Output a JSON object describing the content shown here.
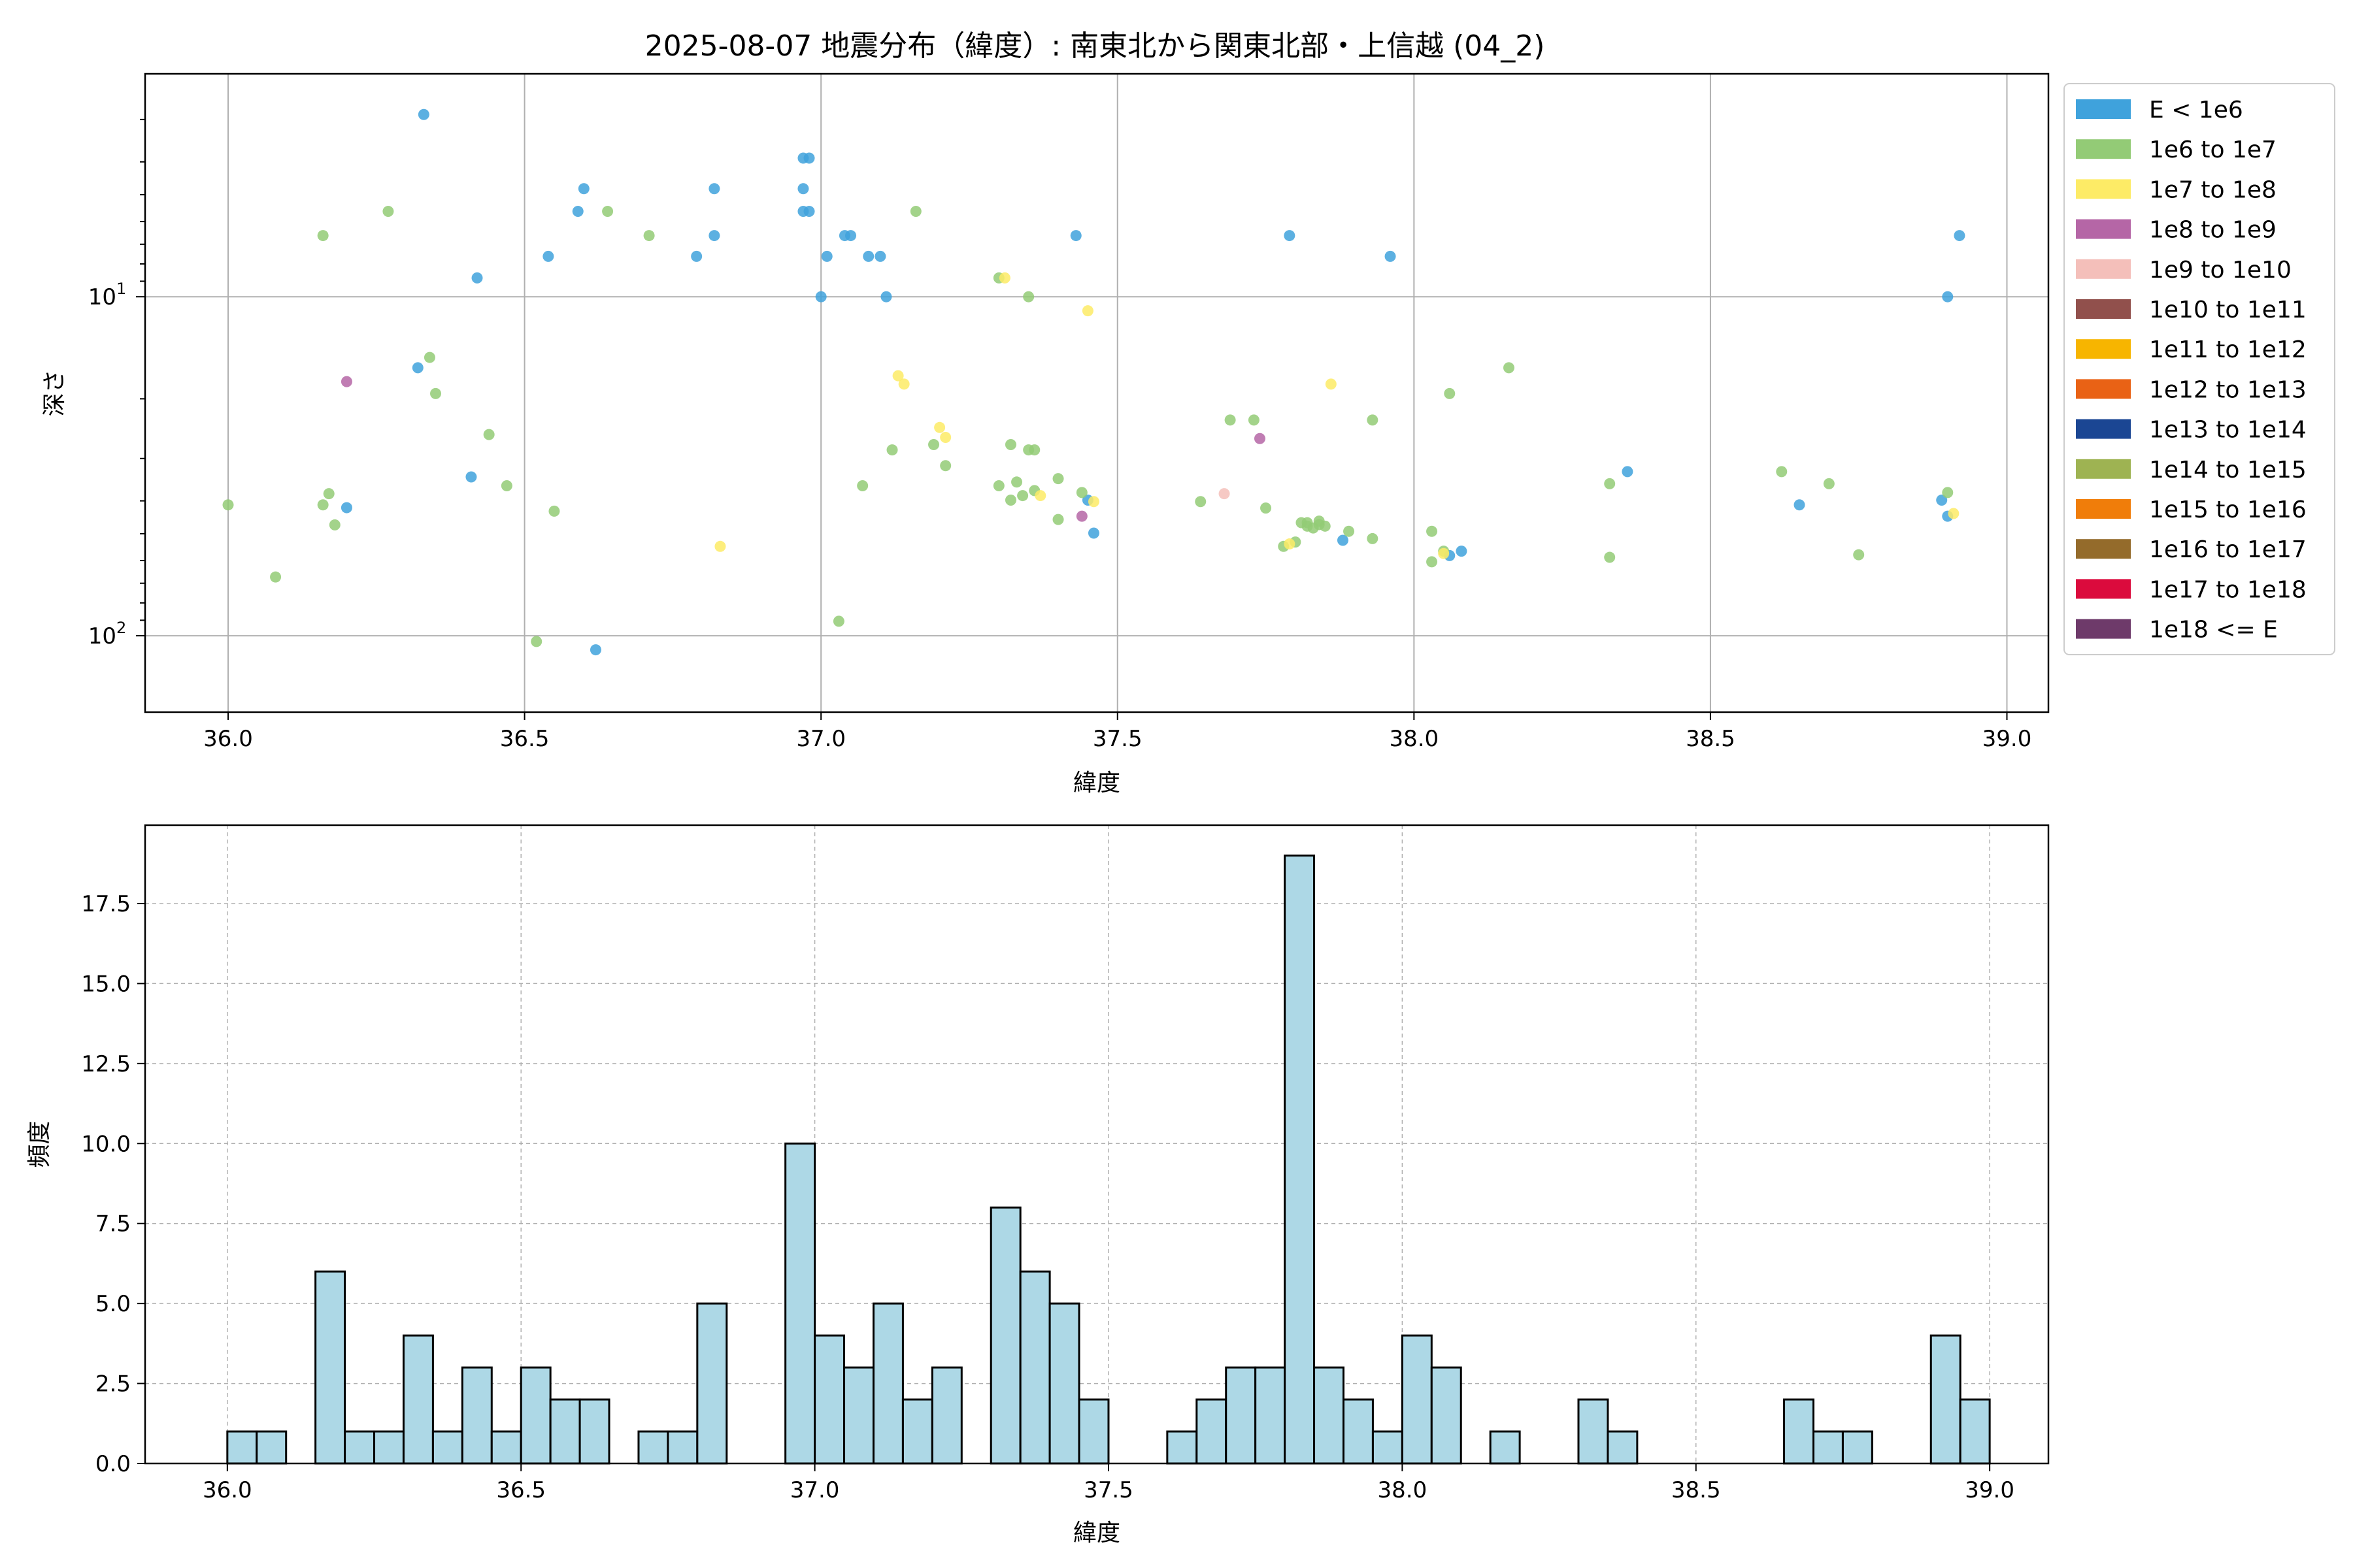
{
  "figure": {
    "title": "2025-08-07 地震分布（緯度）: 南東北から関東北部・上信越 (04_2)"
  },
  "chart_data": [
    {
      "type": "scatter",
      "xlabel": "緯度",
      "ylabel": "深さ",
      "xlim": [
        35.86,
        39.07
      ],
      "ylim": [
        168,
        2.2
      ],
      "y_scale": "log",
      "y_inverted": true,
      "grid": true,
      "x_ticks": [
        {
          "value": 36.0,
          "label": "36.0"
        },
        {
          "value": 36.5,
          "label": "36.5"
        },
        {
          "value": 37.0,
          "label": "37.0"
        },
        {
          "value": 37.5,
          "label": "37.5"
        },
        {
          "value": 38.0,
          "label": "38.0"
        },
        {
          "value": 38.5,
          "label": "38.5"
        },
        {
          "value": 39.0,
          "label": "39.0"
        }
      ],
      "y_ticks": [
        {
          "value": 10,
          "base": "10",
          "exp": "1"
        },
        {
          "value": 100,
          "base": "10",
          "exp": "2"
        }
      ],
      "legend_position": "outside-right",
      "legend": [
        {
          "label": "E < 1e6",
          "color": "#3fa2dc"
        },
        {
          "label": "1e6 to 1e7",
          "color": "#93cb76"
        },
        {
          "label": "1e7 to 1e8",
          "color": "#fdeb66"
        },
        {
          "label": "1e8 to 1e9",
          "color": "#b566a6"
        },
        {
          "label": "1e9 to 1e10",
          "color": "#f4bfba"
        },
        {
          "label": "1e10 to 1e11",
          "color": "#91504c"
        },
        {
          "label": "1e11 to 1e12",
          "color": "#f7b500"
        },
        {
          "label": "1e12 to 1e13",
          "color": "#e96215"
        },
        {
          "label": "1e13 to 1e14",
          "color": "#1b4693"
        },
        {
          "label": "1e14 to 1e15",
          "color": "#9eb352"
        },
        {
          "label": "1e15 to 1e16",
          "color": "#f07d0a"
        },
        {
          "label": "1e16 to 1e17",
          "color": "#946b2b"
        },
        {
          "label": "1e17 to 1e18",
          "color": "#db0b3d"
        },
        {
          "label": "1e18 <= E",
          "color": "#6e3a6a"
        }
      ],
      "points": [
        {
          "lat": 36.33,
          "depth": 2.9,
          "c": 0
        },
        {
          "lat": 36.42,
          "depth": 8.8,
          "c": 0
        },
        {
          "lat": 36.32,
          "depth": 16.2,
          "c": 0
        },
        {
          "lat": 36.41,
          "depth": 34.0,
          "c": 0
        },
        {
          "lat": 36.2,
          "depth": 41.9,
          "c": 0
        },
        {
          "lat": 36.62,
          "depth": 110.0,
          "c": 0
        },
        {
          "lat": 36.54,
          "depth": 7.6,
          "c": 0
        },
        {
          "lat": 36.59,
          "depth": 5.6,
          "c": 0
        },
        {
          "lat": 36.6,
          "depth": 4.8,
          "c": 0
        },
        {
          "lat": 36.79,
          "depth": 7.6,
          "c": 0
        },
        {
          "lat": 36.82,
          "depth": 6.6,
          "c": 0
        },
        {
          "lat": 36.82,
          "depth": 4.8,
          "c": 0
        },
        {
          "lat": 36.97,
          "depth": 3.9,
          "c": 0
        },
        {
          "lat": 36.98,
          "depth": 3.9,
          "c": 0
        },
        {
          "lat": 36.97,
          "depth": 4.8,
          "c": 0
        },
        {
          "lat": 36.97,
          "depth": 5.6,
          "c": 0
        },
        {
          "lat": 36.98,
          "depth": 5.6,
          "c": 0
        },
        {
          "lat": 37.0,
          "depth": 10.0,
          "c": 0
        },
        {
          "lat": 37.01,
          "depth": 7.6,
          "c": 0
        },
        {
          "lat": 37.04,
          "depth": 6.6,
          "c": 0
        },
        {
          "lat": 37.05,
          "depth": 6.6,
          "c": 0
        },
        {
          "lat": 37.08,
          "depth": 7.6,
          "c": 0
        },
        {
          "lat": 37.1,
          "depth": 7.6,
          "c": 0
        },
        {
          "lat": 37.11,
          "depth": 10.0,
          "c": 0
        },
        {
          "lat": 37.43,
          "depth": 6.6,
          "c": 0
        },
        {
          "lat": 37.45,
          "depth": 39.8,
          "c": 0
        },
        {
          "lat": 37.46,
          "depth": 49.8,
          "c": 0
        },
        {
          "lat": 37.79,
          "depth": 6.6,
          "c": 0
        },
        {
          "lat": 37.88,
          "depth": 52.3,
          "c": 0
        },
        {
          "lat": 37.96,
          "depth": 7.6,
          "c": 0
        },
        {
          "lat": 38.06,
          "depth": 58.0,
          "c": 0
        },
        {
          "lat": 38.08,
          "depth": 56.3,
          "c": 0
        },
        {
          "lat": 38.36,
          "depth": 32.8,
          "c": 0
        },
        {
          "lat": 38.65,
          "depth": 41.1,
          "c": 0
        },
        {
          "lat": 38.89,
          "depth": 39.8,
          "c": 0
        },
        {
          "lat": 38.9,
          "depth": 44.4,
          "c": 0
        },
        {
          "lat": 38.9,
          "depth": 10.0,
          "c": 0
        },
        {
          "lat": 38.92,
          "depth": 6.6,
          "c": 0
        },
        {
          "lat": 36.0,
          "depth": 41.1,
          "c": 1
        },
        {
          "lat": 36.08,
          "depth": 67.1,
          "c": 1
        },
        {
          "lat": 36.16,
          "depth": 6.6,
          "c": 1
        },
        {
          "lat": 36.16,
          "depth": 41.1,
          "c": 1
        },
        {
          "lat": 36.17,
          "depth": 38.1,
          "c": 1
        },
        {
          "lat": 36.18,
          "depth": 47.1,
          "c": 1
        },
        {
          "lat": 36.27,
          "depth": 5.6,
          "c": 1
        },
        {
          "lat": 36.34,
          "depth": 15.1,
          "c": 1
        },
        {
          "lat": 36.35,
          "depth": 19.3,
          "c": 1
        },
        {
          "lat": 36.44,
          "depth": 25.5,
          "c": 1
        },
        {
          "lat": 36.47,
          "depth": 36.1,
          "c": 1
        },
        {
          "lat": 36.52,
          "depth": 104.0,
          "c": 1
        },
        {
          "lat": 36.55,
          "depth": 42.9,
          "c": 1
        },
        {
          "lat": 36.64,
          "depth": 5.6,
          "c": 1
        },
        {
          "lat": 36.71,
          "depth": 6.6,
          "c": 1
        },
        {
          "lat": 37.03,
          "depth": 90.6,
          "c": 1
        },
        {
          "lat": 37.07,
          "depth": 36.1,
          "c": 1
        },
        {
          "lat": 37.12,
          "depth": 28.3,
          "c": 1
        },
        {
          "lat": 37.16,
          "depth": 5.6,
          "c": 1
        },
        {
          "lat": 37.19,
          "depth": 27.3,
          "c": 1
        },
        {
          "lat": 37.21,
          "depth": 31.5,
          "c": 1
        },
        {
          "lat": 37.3,
          "depth": 8.8,
          "c": 1
        },
        {
          "lat": 37.3,
          "depth": 36.1,
          "c": 1
        },
        {
          "lat": 37.32,
          "depth": 27.3,
          "c": 1
        },
        {
          "lat": 37.32,
          "depth": 39.8,
          "c": 1
        },
        {
          "lat": 37.33,
          "depth": 35.2,
          "c": 1
        },
        {
          "lat": 37.34,
          "depth": 38.6,
          "c": 1
        },
        {
          "lat": 37.35,
          "depth": 10.0,
          "c": 1
        },
        {
          "lat": 37.35,
          "depth": 28.3,
          "c": 1
        },
        {
          "lat": 37.36,
          "depth": 28.3,
          "c": 1
        },
        {
          "lat": 37.36,
          "depth": 37.3,
          "c": 1
        },
        {
          "lat": 37.4,
          "depth": 34.4,
          "c": 1
        },
        {
          "lat": 37.4,
          "depth": 45.4,
          "c": 1
        },
        {
          "lat": 37.44,
          "depth": 37.8,
          "c": 1
        },
        {
          "lat": 37.64,
          "depth": 40.2,
          "c": 1
        },
        {
          "lat": 37.69,
          "depth": 23.1,
          "c": 1
        },
        {
          "lat": 37.73,
          "depth": 23.1,
          "c": 1
        },
        {
          "lat": 37.75,
          "depth": 42.0,
          "c": 1
        },
        {
          "lat": 37.78,
          "depth": 54.5,
          "c": 1
        },
        {
          "lat": 37.8,
          "depth": 52.9,
          "c": 1
        },
        {
          "lat": 37.81,
          "depth": 46.4,
          "c": 1
        },
        {
          "lat": 37.82,
          "depth": 46.4,
          "c": 1
        },
        {
          "lat": 37.82,
          "depth": 47.5,
          "c": 1
        },
        {
          "lat": 37.83,
          "depth": 48.1,
          "c": 1
        },
        {
          "lat": 37.84,
          "depth": 45.9,
          "c": 1
        },
        {
          "lat": 37.84,
          "depth": 47.0,
          "c": 1
        },
        {
          "lat": 37.85,
          "depth": 47.5,
          "c": 1
        },
        {
          "lat": 37.89,
          "depth": 49.2,
          "c": 1
        },
        {
          "lat": 37.93,
          "depth": 23.1,
          "c": 1
        },
        {
          "lat": 37.93,
          "depth": 51.7,
          "c": 1
        },
        {
          "lat": 38.03,
          "depth": 49.2,
          "c": 1
        },
        {
          "lat": 38.03,
          "depth": 60.5,
          "c": 1
        },
        {
          "lat": 38.05,
          "depth": 56.3,
          "c": 1
        },
        {
          "lat": 38.06,
          "depth": 19.3,
          "c": 1
        },
        {
          "lat": 38.16,
          "depth": 16.2,
          "c": 1
        },
        {
          "lat": 38.33,
          "depth": 35.6,
          "c": 1
        },
        {
          "lat": 38.33,
          "depth": 58.7,
          "c": 1
        },
        {
          "lat": 38.62,
          "depth": 32.8,
          "c": 1
        },
        {
          "lat": 38.7,
          "depth": 35.6,
          "c": 1
        },
        {
          "lat": 38.75,
          "depth": 57.7,
          "c": 1
        },
        {
          "lat": 38.9,
          "depth": 37.8,
          "c": 1
        },
        {
          "lat": 36.83,
          "depth": 54.5,
          "c": 2
        },
        {
          "lat": 37.13,
          "depth": 17.1,
          "c": 2
        },
        {
          "lat": 37.14,
          "depth": 18.1,
          "c": 2
        },
        {
          "lat": 37.2,
          "depth": 24.3,
          "c": 2
        },
        {
          "lat": 37.21,
          "depth": 26.0,
          "c": 2
        },
        {
          "lat": 37.31,
          "depth": 8.8,
          "c": 2
        },
        {
          "lat": 37.37,
          "depth": 38.6,
          "c": 2
        },
        {
          "lat": 37.45,
          "depth": 11.0,
          "c": 2
        },
        {
          "lat": 37.46,
          "depth": 40.2,
          "c": 2
        },
        {
          "lat": 37.79,
          "depth": 53.6,
          "c": 2
        },
        {
          "lat": 37.86,
          "depth": 18.1,
          "c": 2
        },
        {
          "lat": 38.05,
          "depth": 57.2,
          "c": 2
        },
        {
          "lat": 38.91,
          "depth": 43.6,
          "c": 2
        },
        {
          "lat": 36.2,
          "depth": 17.8,
          "c": 3
        },
        {
          "lat": 37.74,
          "depth": 26.2,
          "c": 3
        },
        {
          "lat": 37.44,
          "depth": 44.4,
          "c": 3
        },
        {
          "lat": 37.68,
          "depth": 38.1,
          "c": 4
        }
      ]
    },
    {
      "type": "bar",
      "xlabel": "緯度",
      "ylabel": "頻度",
      "xlim": [
        35.86,
        39.1
      ],
      "ylim": [
        0,
        19.95
      ],
      "grid": true,
      "grid_style": "dashed",
      "bar_color": "#add8e6",
      "edge_color": "#000000",
      "x_ticks": [
        {
          "value": 36.0,
          "label": "36.0"
        },
        {
          "value": 36.5,
          "label": "36.5"
        },
        {
          "value": 37.0,
          "label": "37.0"
        },
        {
          "value": 37.5,
          "label": "37.5"
        },
        {
          "value": 38.0,
          "label": "38.0"
        },
        {
          "value": 38.5,
          "label": "38.5"
        },
        {
          "value": 39.0,
          "label": "39.0"
        }
      ],
      "y_ticks": [
        {
          "value": 0,
          "label": "0.0"
        },
        {
          "value": 2.5,
          "label": "2.5"
        },
        {
          "value": 5,
          "label": "5.0"
        },
        {
          "value": 7.5,
          "label": "7.5"
        },
        {
          "value": 10,
          "label": "10.0"
        },
        {
          "value": 12.5,
          "label": "12.5"
        },
        {
          "value": 15,
          "label": "15.0"
        },
        {
          "value": 17.5,
          "label": "17.5"
        }
      ],
      "bin_start": 36.0,
      "bin_width": 0.05,
      "counts": [
        1,
        1,
        0,
        6,
        1,
        1,
        4,
        1,
        3,
        1,
        3,
        2,
        2,
        0,
        1,
        1,
        5,
        0,
        0,
        10,
        4,
        3,
        5,
        2,
        3,
        0,
        8,
        6,
        5,
        2,
        0,
        0,
        1,
        2,
        3,
        3,
        19,
        3,
        2,
        1,
        4,
        3,
        0,
        1,
        0,
        0,
        2,
        1,
        0,
        0,
        0,
        0,
        0,
        2,
        1,
        1,
        0,
        0,
        4,
        2
      ]
    }
  ]
}
